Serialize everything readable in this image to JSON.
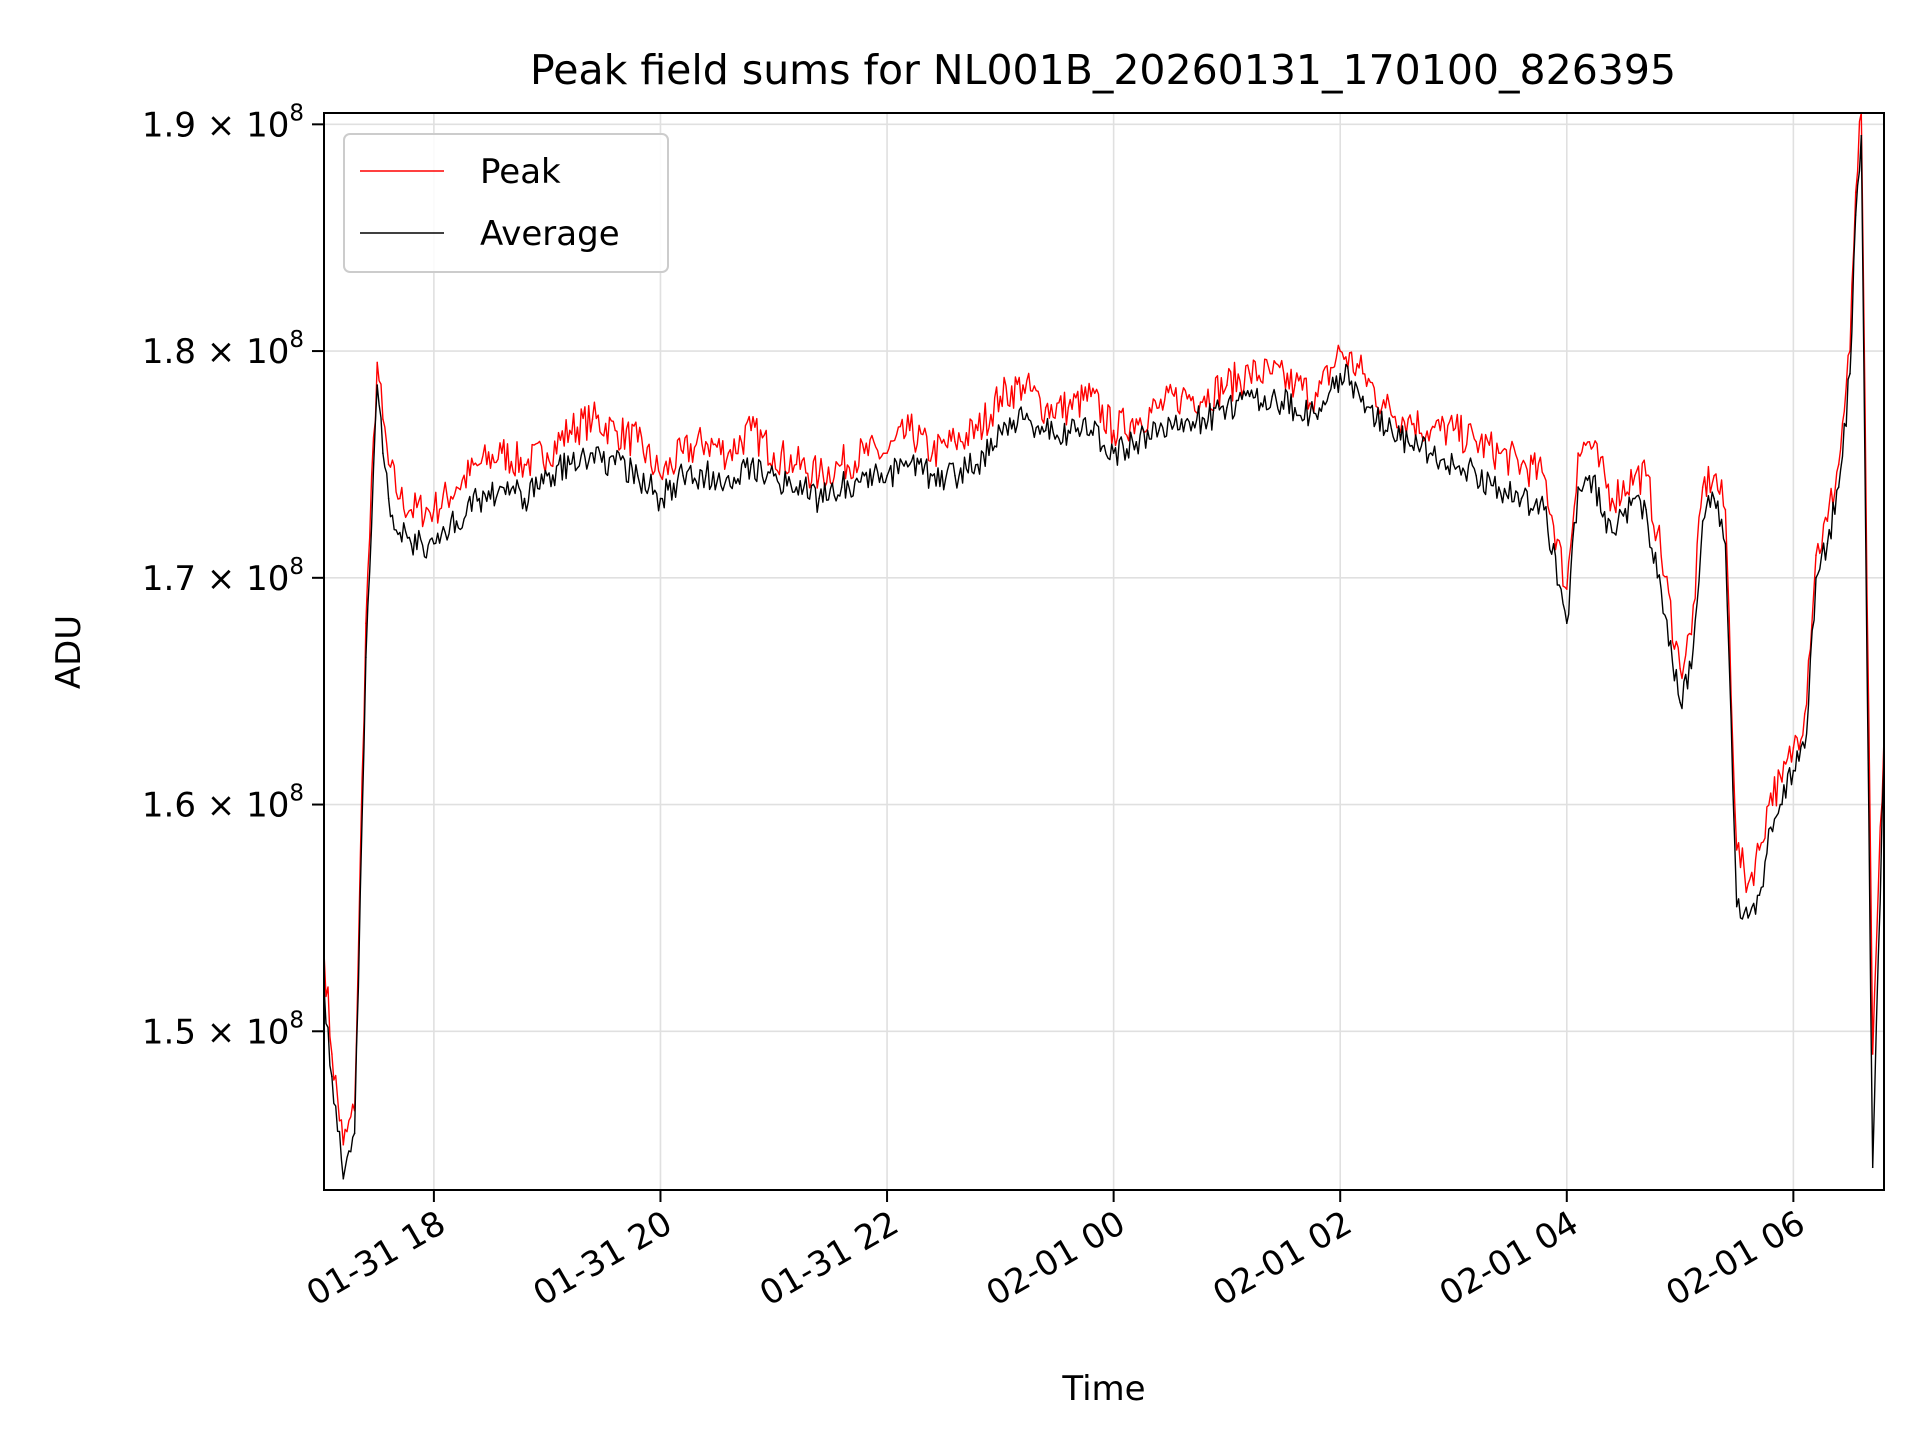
{
  "chart_data": {
    "type": "line",
    "title": "Peak field sums for NL001B_20260131_170100_826395",
    "xlabel": "Time",
    "ylabel": "ADU",
    "grid": true,
    "legend_position": "upper-left",
    "x_unit": "hours since 2026-01-31 17:00",
    "xlim": [
      0.03,
      13.8
    ],
    "ylim": [
      143000000.0,
      190500000.0
    ],
    "x_ticks": [
      {
        "x": 1.0,
        "label": "01-31 18"
      },
      {
        "x": 3.0,
        "label": "01-31 20"
      },
      {
        "x": 5.0,
        "label": "01-31 22"
      },
      {
        "x": 7.0,
        "label": "02-01 00"
      },
      {
        "x": 9.0,
        "label": "02-01 02"
      },
      {
        "x": 11.0,
        "label": "02-01 04"
      },
      {
        "x": 13.0,
        "label": "02-01 06"
      }
    ],
    "y_ticks": [
      {
        "value": 150000000.0,
        "mantissa": "1.5",
        "exp": "8"
      },
      {
        "value": 160000000.0,
        "mantissa": "1.6",
        "exp": "8"
      },
      {
        "value": 170000000.0,
        "mantissa": "1.7",
        "exp": "8"
      },
      {
        "value": 180000000.0,
        "mantissa": "1.8",
        "exp": "8"
      },
      {
        "value": 190000000.0,
        "mantissa": "1.9",
        "exp": "8"
      }
    ],
    "series": [
      {
        "name": "Peak",
        "color": "#ff0000",
        "x": [
          0.03,
          0.1,
          0.2,
          0.3,
          0.4,
          0.5,
          0.55,
          0.6,
          0.7,
          0.8,
          1.0,
          1.2,
          1.4,
          1.6,
          1.8,
          2.0,
          2.2,
          2.4,
          2.6,
          2.8,
          3.0,
          3.2,
          3.4,
          3.6,
          3.8,
          4.0,
          4.2,
          4.4,
          4.6,
          4.8,
          5.0,
          5.2,
          5.4,
          5.6,
          5.8,
          6.0,
          6.2,
          6.4,
          6.6,
          6.8,
          7.0,
          7.2,
          7.4,
          7.6,
          7.8,
          8.0,
          8.2,
          8.4,
          8.6,
          8.8,
          9.0,
          9.2,
          9.4,
          9.6,
          9.8,
          10.0,
          10.2,
          10.4,
          10.6,
          10.8,
          11.0,
          11.1,
          11.2,
          11.4,
          11.6,
          11.7,
          11.8,
          12.0,
          12.1,
          12.2,
          12.3,
          12.4,
          12.5,
          12.6,
          12.7,
          12.8,
          12.9,
          13.0,
          13.1,
          13.2,
          13.3,
          13.4,
          13.5,
          13.55,
          13.6,
          13.7,
          13.8
        ],
        "values": [
          153500000.0,
          149000000.0,
          145000000.0,
          146500000.0,
          168000000.0,
          179500000.0,
          177000000.0,
          175000000.0,
          173500000.0,
          173000000.0,
          173000000.0,
          174000000.0,
          175000000.0,
          175500000.0,
          175000000.0,
          175500000.0,
          176500000.0,
          177000000.0,
          176500000.0,
          176000000.0,
          174500000.0,
          175500000.0,
          176000000.0,
          175500000.0,
          176500000.0,
          175500000.0,
          175000000.0,
          174500000.0,
          175000000.0,
          175500000.0,
          175500000.0,
          176500000.0,
          175500000.0,
          176000000.0,
          176500000.0,
          178000000.0,
          178500000.0,
          177500000.0,
          177500000.0,
          178000000.0,
          176500000.0,
          177000000.0,
          177500000.0,
          178000000.0,
          178000000.0,
          178500000.0,
          179000000.0,
          179000000.0,
          178500000.0,
          178000000.0,
          180000000.0,
          179000000.0,
          177500000.0,
          177000000.0,
          176500000.0,
          176500000.0,
          176000000.0,
          175500000.0,
          175000000.0,
          174500000.0,
          169500000.0,
          175500000.0,
          176000000.0,
          173500000.0,
          174500000.0,
          174500000.0,
          172000000.0,
          166000000.0,
          167500000.0,
          174000000.0,
          174500000.0,
          173000000.0,
          158000000.0,
          156500000.0,
          158000000.0,
          160500000.0,
          161000000.0,
          162500000.0,
          164000000.0,
          171000000.0,
          172500000.0,
          175000000.0,
          180000000.0,
          187000000.0,
          190500000.0,
          149000000.0,
          163000000.0
        ]
      },
      {
        "name": "Average",
        "color": "#000000",
        "x": [
          0.03,
          0.1,
          0.2,
          0.3,
          0.4,
          0.5,
          0.55,
          0.6,
          0.7,
          0.8,
          1.0,
          1.2,
          1.4,
          1.6,
          1.8,
          2.0,
          2.2,
          2.4,
          2.6,
          2.8,
          3.0,
          3.2,
          3.4,
          3.6,
          3.8,
          4.0,
          4.2,
          4.4,
          4.6,
          4.8,
          5.0,
          5.2,
          5.4,
          5.6,
          5.8,
          6.0,
          6.2,
          6.4,
          6.6,
          6.8,
          7.0,
          7.2,
          7.4,
          7.6,
          7.8,
          8.0,
          8.2,
          8.4,
          8.6,
          8.8,
          9.0,
          9.2,
          9.4,
          9.6,
          9.8,
          10.0,
          10.2,
          10.4,
          10.6,
          10.8,
          11.0,
          11.1,
          11.2,
          11.4,
          11.6,
          11.7,
          11.8,
          12.0,
          12.1,
          12.2,
          12.3,
          12.4,
          12.5,
          12.6,
          12.7,
          12.8,
          12.9,
          13.0,
          13.1,
          13.2,
          13.3,
          13.4,
          13.5,
          13.55,
          13.6,
          13.7,
          13.8
        ],
        "values": [
          152000000.0,
          148000000.0,
          143500000.0,
          145500000.0,
          166500000.0,
          178500000.0,
          175500000.0,
          173500000.0,
          172000000.0,
          171500000.0,
          171500000.0,
          172500000.0,
          173500000.0,
          174000000.0,
          173500000.0,
          174500000.0,
          175000000.0,
          175500000.0,
          175000000.0,
          174500000.0,
          173500000.0,
          174500000.0,
          174500000.0,
          174500000.0,
          175000000.0,
          174500000.0,
          174000000.0,
          173500000.0,
          174000000.0,
          174500000.0,
          174500000.0,
          175000000.0,
          174500000.0,
          174500000.0,
          175000000.0,
          176500000.0,
          177000000.0,
          176500000.0,
          176500000.0,
          176500000.0,
          175500000.0,
          176000000.0,
          176500000.0,
          177000000.0,
          177000000.0,
          177500000.0,
          178000000.0,
          178000000.0,
          177500000.0,
          177000000.0,
          179000000.0,
          178000000.0,
          176500000.0,
          176000000.0,
          175500000.0,
          175000000.0,
          174500000.0,
          174000000.0,
          173500000.0,
          173000000.0,
          168000000.0,
          174000000.0,
          174500000.0,
          172000000.0,
          173500000.0,
          173000000.0,
          170000000.0,
          164500000.0,
          166000000.0,
          172500000.0,
          173500000.0,
          171500000.0,
          155500000.0,
          155000000.0,
          156000000.0,
          159000000.0,
          160000000.0,
          161500000.0,
          162500000.0,
          170000000.0,
          171500000.0,
          174000000.0,
          179000000.0,
          186000000.0,
          189500000.0,
          144000000.0,
          162000000.0
        ]
      }
    ]
  }
}
